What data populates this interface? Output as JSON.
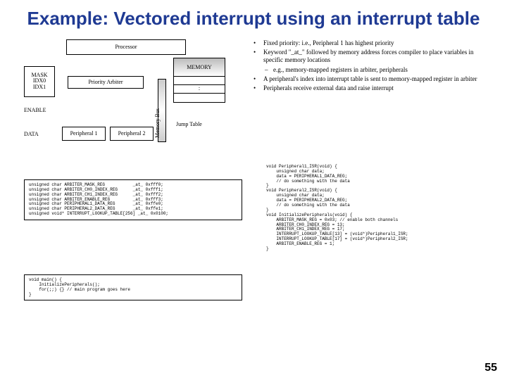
{
  "title": {
    "text": "Example: Vectored interrupt using an interrupt table",
    "color": "#1f3a93",
    "fontsize": 26
  },
  "diagram": {
    "processor": "Processor",
    "mask_l1": "MASK",
    "mask_l2": "IDX0",
    "mask_l3": "IDX1",
    "arbiter": "Priority Arbiter",
    "memory": "MEMORY",
    "membus": "Memory Bus",
    "enable": "ENABLE",
    "data": "DATA",
    "p1": "Peripheral 1",
    "p2": "Peripheral 2",
    "jump": "Jump Table",
    "slot_dots": ":",
    "label_fontsize": 8
  },
  "bullets": {
    "fontsize": 9,
    "b1": "Fixed priority: i.e., Peripheral 1 has highest priority",
    "b2": "Keyword \"_at_\" followed by memory address forces compiler to place variables in specific memory locations",
    "b2s": "e.g., memory-mapped registers in arbiter, peripherals",
    "b3": "A peripheral's index into interrupt table is sent to memory-mapped register in arbiter",
    "b4": "Peripherals receive external data and raise interrupt"
  },
  "code1": {
    "fontsize": 6,
    "text": "unsigned char ARBITER_MASK_REG           _at_ 0xfff0;\nunsigned char ARBITER_CH0_INDEX_REG      _at_ 0xfff1;\nunsigned char ARBITER_CH1_INDEX_REG      _at_ 0xfff2;\nunsigned char ARBITER_ENABLE_REG         _at_ 0xfff3;\nunsigned char PERIPHERAL1_DATA_REG       _at_ 0xffe0;\nunsigned char PERIPHERAL2_DATA_REG       _at_ 0xffe1;\nunsigned void* INTERRUPT_LOOKUP_TABLE[256] _at_ 0x0100;"
  },
  "code2": {
    "fontsize": 6,
    "text": "void main() {\n    InitializePeripherals();\n    for(;;) {} // main program goes here\n}"
  },
  "code3": {
    "fontsize": 6,
    "text": "void Peripheral1_ISR(void) {\n    unsigned char data;\n    data = PERIPHERAL1_DATA_REG;\n    // do something with the data\n}\nvoid Peripheral2_ISR(void) {\n    unsigned char data;\n    data = PERIPHERAL2_DATA_REG;\n    // do something with the data\n}\nvoid InitializePeripherals(void) {\n    ARBITER_MASK_REG = 0x03; // enable both channels\n    ARBITER_CH0_INDEX_REG = 13;\n    ARBITER_CH1_INDEX_REG = 17;\n    INTERRUPT_LOOKUP_TABLE[13] = (void*)Peripheral1_ISR;\n    INTERRUPT_LOOKUP_TABLE[17] = (void*)Peripheral2_ISR;\n    ARBITER_ENABLE_REG = 1;\n}"
  },
  "pagenum": "55"
}
